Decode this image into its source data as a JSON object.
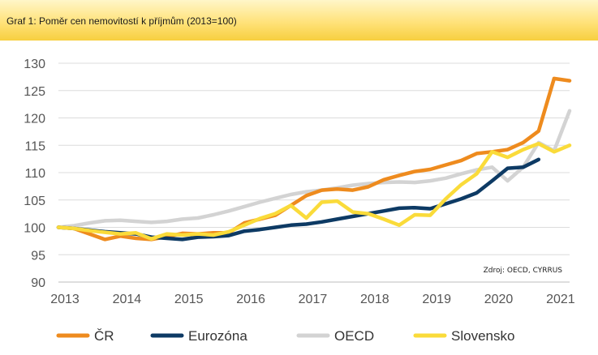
{
  "header": {
    "title": "Graf 1: Poměr cen nemovitostí k příjmům (2013=100)"
  },
  "source": "Zdroj: OECD, CYRRUS",
  "chart_data": {
    "type": "line",
    "title": "Graf 1: Poměr cen nemovitostí k příjmům (2013=100)",
    "xlabel": "",
    "ylabel": "",
    "xlim": [
      2013,
      2021.25
    ],
    "ylim": [
      90,
      130
    ],
    "y_ticks": [
      90,
      95,
      100,
      105,
      110,
      115,
      120,
      125,
      130
    ],
    "x_ticks": [
      2013,
      2014,
      2015,
      2016,
      2017,
      2018,
      2019,
      2020,
      2021
    ],
    "grid": "horizontal",
    "legend_position": "bottom",
    "series": [
      {
        "name": "ČR",
        "color": "#ee8b1e",
        "x": [
          2013,
          2013.25,
          2013.5,
          2013.75,
          2014,
          2014.25,
          2014.5,
          2014.75,
          2015,
          2015.25,
          2015.5,
          2015.75,
          2016,
          2016.25,
          2016.5,
          2016.75,
          2017,
          2017.25,
          2017.5,
          2017.75,
          2018,
          2018.25,
          2018.5,
          2018.75,
          2019,
          2019.25,
          2019.5,
          2019.75,
          2020,
          2020.25,
          2020.5,
          2020.75,
          2021,
          2021.25
        ],
        "values": [
          100,
          99.8,
          98.8,
          97.8,
          98.4,
          98,
          97.8,
          98.3,
          98.9,
          98.8,
          99,
          99,
          100.8,
          101.5,
          102.2,
          104,
          105.8,
          106.8,
          107,
          106.8,
          107.4,
          108.7,
          109.5,
          110.2,
          110.6,
          111.4,
          112.2,
          113.5,
          113.8,
          114.2,
          115.5,
          117.6,
          127.2,
          126.8
        ]
      },
      {
        "name": "Eurozóna",
        "color": "#0d3a64",
        "x": [
          2013,
          2013.25,
          2013.5,
          2013.75,
          2014,
          2014.25,
          2014.5,
          2014.75,
          2015,
          2015.25,
          2015.5,
          2015.75,
          2016,
          2016.25,
          2016.5,
          2016.75,
          2017,
          2017.25,
          2017.5,
          2017.75,
          2018,
          2018.25,
          2018.5,
          2018.75,
          2019,
          2019.25,
          2019.5,
          2019.75,
          2020,
          2020.25,
          2020.5,
          2020.75
        ],
        "values": [
          100,
          99.8,
          99.5,
          99.2,
          99,
          98.8,
          98.2,
          98,
          97.8,
          98.2,
          98.3,
          98.5,
          99.3,
          99.6,
          100,
          100.4,
          100.6,
          101,
          101.5,
          102,
          102.5,
          103,
          103.5,
          103.6,
          103.4,
          104.3,
          105.2,
          106.3,
          108.5,
          110.8,
          111,
          112.4
        ]
      },
      {
        "name": "OECD",
        "color": "#d3d3d3",
        "x": [
          2013,
          2013.25,
          2013.5,
          2013.75,
          2014,
          2014.25,
          2014.5,
          2014.75,
          2015,
          2015.25,
          2015.5,
          2015.75,
          2016,
          2016.25,
          2016.5,
          2016.75,
          2017,
          2017.25,
          2017.5,
          2017.75,
          2018,
          2018.25,
          2018.5,
          2018.75,
          2019,
          2019.25,
          2019.5,
          2019.75,
          2020,
          2020.25,
          2020.5,
          2020.75,
          2021,
          2021.25
        ],
        "values": [
          100,
          100.3,
          100.8,
          101.2,
          101.3,
          101.1,
          100.9,
          101.1,
          101.5,
          101.7,
          102.3,
          103,
          103.8,
          104.6,
          105.3,
          106,
          106.5,
          106.8,
          107.2,
          107.7,
          108,
          108.2,
          108.3,
          108.2,
          108.5,
          109,
          109.8,
          110.5,
          111,
          108.5,
          111,
          115.5,
          114,
          121.3
        ]
      },
      {
        "name": "Slovensko",
        "color": "#fadb3a",
        "x": [
          2013,
          2013.25,
          2013.5,
          2013.75,
          2014,
          2014.25,
          2014.5,
          2014.75,
          2015,
          2015.25,
          2015.5,
          2015.75,
          2016,
          2016.25,
          2016.5,
          2016.75,
          2017,
          2017.25,
          2017.5,
          2017.75,
          2018,
          2018.25,
          2018.5,
          2018.75,
          2019,
          2019.25,
          2019.5,
          2019.75,
          2020,
          2020.25,
          2020.5,
          2020.75,
          2021,
          2021.25
        ],
        "values": [
          100,
          99.8,
          99.4,
          99.1,
          98.8,
          99,
          97.9,
          98.8,
          98.6,
          98.8,
          98.6,
          99.2,
          100.4,
          101.6,
          102.5,
          104,
          101.7,
          104.6,
          104.8,
          102.8,
          102.5,
          101.5,
          100.4,
          102.3,
          102.2,
          105.2,
          107.8,
          109.8,
          113.8,
          112.8,
          114.2,
          115.3,
          113.8,
          115
        ]
      }
    ]
  }
}
